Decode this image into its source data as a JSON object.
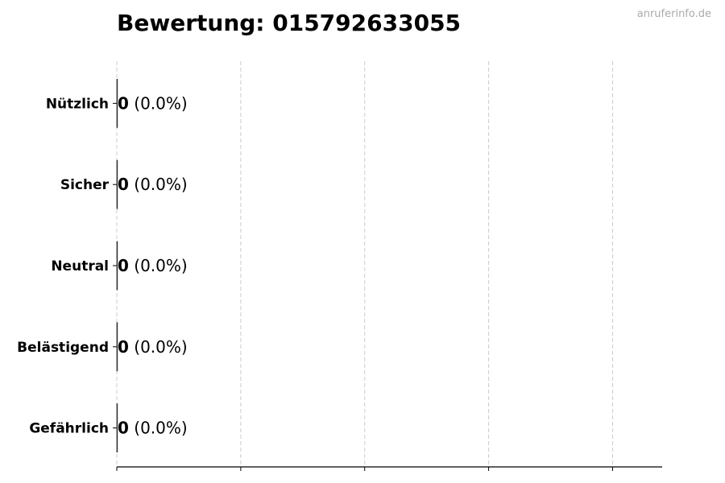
{
  "chart_data": {
    "type": "bar",
    "orientation": "horizontal",
    "title": "Bewertung: 015792633055",
    "categories": [
      "Nützlich",
      "Sicher",
      "Neutral",
      "Belästigend",
      "Gefährlich"
    ],
    "values": [
      0,
      0,
      0,
      0,
      0
    ],
    "data_labels": [
      {
        "count": "0",
        "percent": "(0.0%)"
      },
      {
        "count": "0",
        "percent": "(0.0%)"
      },
      {
        "count": "0",
        "percent": "(0.0%)"
      },
      {
        "count": "0",
        "percent": "(0.0%)"
      },
      {
        "count": "0",
        "percent": "(0.0%)"
      }
    ],
    "xlabel": "",
    "ylabel": "",
    "xlim": [
      0,
      4.4
    ],
    "xticks": [
      0,
      1,
      2,
      3,
      4
    ],
    "xtick_labels_shown": false,
    "grid": "x dashed",
    "colors": {
      "bar_edge": "#333333",
      "grid": "#cccccc",
      "axis": "#000000"
    }
  },
  "watermark": "anruferinfo.de"
}
